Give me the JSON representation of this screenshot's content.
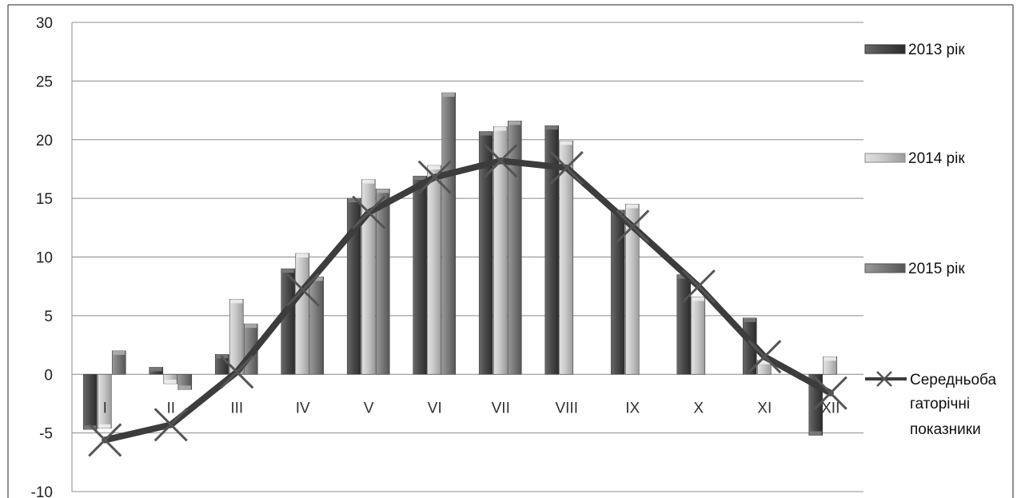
{
  "colors": {
    "series_2013": "#555555",
    "series_2014": "#c4c4c4",
    "series_2015": "#7a7a7a",
    "average_line": "#3c3c3c",
    "grid": "#8c8c8c"
  },
  "chart_data": {
    "type": "bar",
    "categories": [
      "I",
      "II",
      "III",
      "IV",
      "V",
      "VI",
      "VII",
      "VIII",
      "IX",
      "X",
      "XI",
      "XII"
    ],
    "ylim": [
      -10,
      30
    ],
    "yticks": [
      "-10",
      "-5",
      "0",
      "5",
      "10",
      "15",
      "20",
      "25",
      "30"
    ],
    "grid": true,
    "legend_position": "right",
    "series": [
      {
        "name": "2013 рік",
        "type": "bar",
        "values": [
          -4.7,
          0.6,
          1.7,
          9.0,
          15.0,
          16.9,
          20.7,
          21.2,
          14.0,
          8.5,
          4.8,
          -5.2
        ]
      },
      {
        "name": "2014 рік",
        "type": "bar",
        "values": [
          -4.6,
          -0.8,
          6.4,
          10.3,
          16.6,
          17.8,
          21.1,
          19.9,
          14.5,
          6.6,
          1.2,
          1.5
        ]
      },
      {
        "name": "2015 рік",
        "type": "bar",
        "values": [
          2.0,
          -1.3,
          4.3,
          8.3,
          15.8,
          24.0,
          21.6,
          null,
          null,
          null,
          null,
          null
        ]
      },
      {
        "name": "Середньобагаторічні показники",
        "type": "line",
        "values": [
          -5.6,
          -4.3,
          0.2,
          7.2,
          13.8,
          16.8,
          18.2,
          17.6,
          12.6,
          7.5,
          1.5,
          -1.6
        ]
      }
    ]
  },
  "legend": {
    "items": [
      {
        "label": "2013 рік"
      },
      {
        "label": "2014 рік"
      },
      {
        "label": "2015 рік"
      },
      {
        "label_lines": [
          "Середньоба",
          "гаторічні",
          "показники"
        ]
      }
    ]
  }
}
